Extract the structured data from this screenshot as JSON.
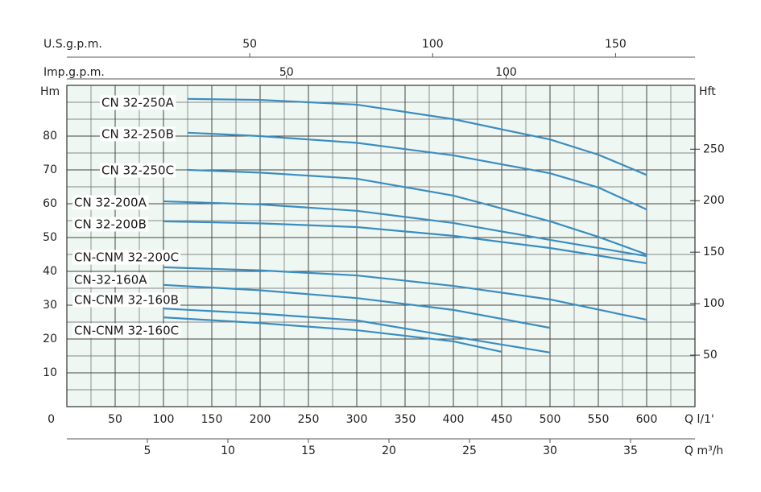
{
  "chart_data": {
    "type": "line",
    "xlabel": "Q l/1'",
    "ylabel": "Hm",
    "xlim": [
      0,
      650
    ],
    "xticks": [
      0,
      50,
      100,
      150,
      200,
      250,
      300,
      350,
      400,
      450,
      500,
      550,
      600
    ],
    "ylim": [
      0,
      95
    ],
    "yticks": [
      10,
      20,
      30,
      40,
      50,
      60,
      70,
      80
    ],
    "y2label": "Hft",
    "y2lim": [
      0,
      312
    ],
    "y2ticks": [
      50,
      100,
      150,
      200,
      250
    ],
    "x2label": "U.S.g.p.m.",
    "x2lim": [
      0,
      171.7
    ],
    "x2ticks": [
      50,
      100,
      150
    ],
    "x3label": "Imp.g.p.m.",
    "x3lim": [
      0,
      143
    ],
    "x3ticks": [
      50,
      100
    ],
    "x4label": "Q m³/h",
    "x4lim": [
      0,
      39
    ],
    "x4ticks": [
      5,
      10,
      15,
      20,
      25,
      30,
      35
    ],
    "grid": true,
    "series": [
      {
        "name": "CN 32-250A",
        "color": "#3a8dc1",
        "x": [
          125,
          200,
          300,
          400,
          500,
          550,
          600
        ],
        "values": [
          91,
          90.7,
          89.3,
          85,
          79,
          74.5,
          68.5
        ]
      },
      {
        "name": "CN 32-250B",
        "color": "#3a8dc1",
        "x": [
          125,
          200,
          300,
          400,
          500,
          550,
          600
        ],
        "values": [
          81,
          80,
          78,
          74.3,
          69,
          64.8,
          58.3
        ]
      },
      {
        "name": "CN 32-250C",
        "color": "#3a8dc1",
        "x": [
          125,
          200,
          300,
          400,
          500,
          550,
          600
        ],
        "values": [
          70,
          69.2,
          67.4,
          62.4,
          54.8,
          50.2,
          45
        ]
      },
      {
        "name": "CN 32-200A",
        "color": "#3a8dc1",
        "x": [
          100,
          200,
          300,
          400,
          500,
          600
        ],
        "values": [
          60.7,
          59.8,
          57.9,
          54.3,
          49.3,
          44.5
        ]
      },
      {
        "name": "CN 32-200B",
        "color": "#3a8dc1",
        "x": [
          100,
          200,
          300,
          400,
          500,
          600
        ],
        "values": [
          54.8,
          54.2,
          53.1,
          50.5,
          46.9,
          42.4
        ]
      },
      {
        "name": "CN-CNM 32-200C",
        "color": "#3a8dc1",
        "x": [
          100,
          200,
          300,
          400,
          500,
          600
        ],
        "values": [
          41.2,
          40.3,
          38.8,
          35.7,
          31.7,
          25.7
        ]
      },
      {
        "name": "CN-32-160A",
        "color": "#3a8dc1",
        "x": [
          100,
          200,
          300,
          400,
          500
        ],
        "values": [
          36,
          34.4,
          32.1,
          28.6,
          23.3
        ]
      },
      {
        "name": "CN-CNM 32-160B",
        "color": "#3a8dc1",
        "x": [
          100,
          200,
          300,
          400,
          500
        ],
        "values": [
          29,
          27.5,
          25.5,
          20.7,
          16
        ]
      },
      {
        "name": "CN-CNM 32-160C",
        "color": "#3a8dc1",
        "x": [
          100,
          200,
          300,
          400,
          450
        ],
        "values": [
          26.4,
          24.7,
          22.6,
          19.3,
          16.2
        ]
      }
    ]
  }
}
